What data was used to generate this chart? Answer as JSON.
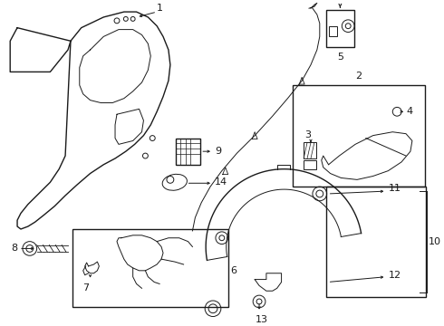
{
  "bg_color": "#ffffff",
  "line_color": "#1a1a1a",
  "text_color": "#111111",
  "fig_w": 4.9,
  "fig_h": 3.6,
  "dpi": 100
}
